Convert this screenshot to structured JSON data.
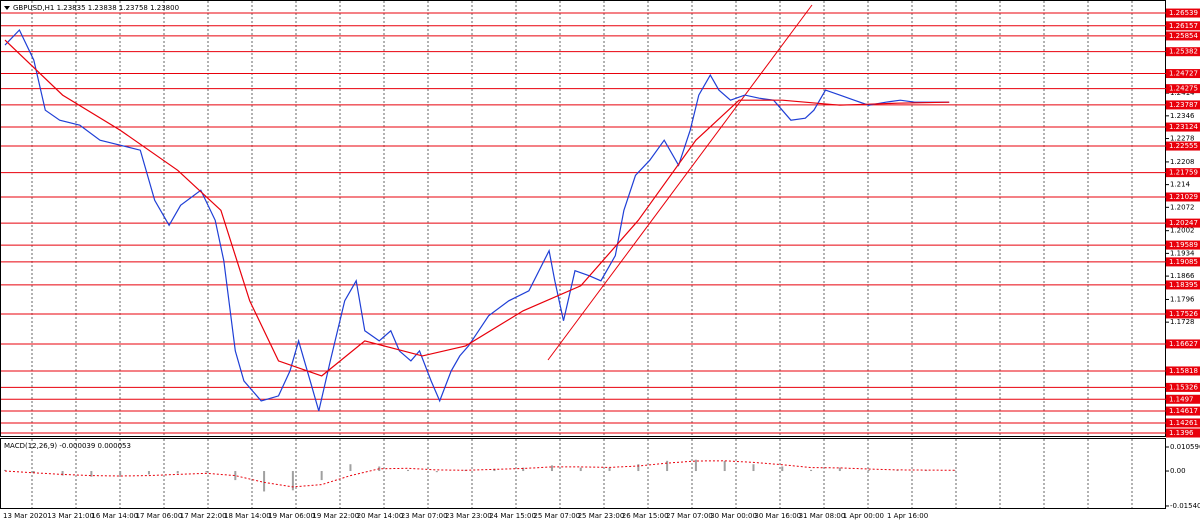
{
  "chart_data": {
    "type": "line",
    "title": "GBPUSD,H1 1.23835 1.23838 1.23758 1.23800",
    "xlim": [
      0,
      330
    ],
    "ylim": [
      1.1387,
      1.2693
    ],
    "yticks": [
      1.2414,
      1.2346,
      1.2278,
      1.2208,
      1.214,
      1.2072,
      1.2002,
      1.1934,
      1.1866,
      1.1796,
      1.1728
    ],
    "levels": [
      1.26539,
      1.26157,
      1.25854,
      1.25382,
      1.24727,
      1.24275,
      1.23787,
      1.23124,
      1.22555,
      1.21759,
      1.21029,
      1.20247,
      1.19589,
      1.19085,
      1.18395,
      1.17526,
      1.16627,
      1.15818,
      1.15326,
      1.1497,
      1.14617,
      1.14261,
      1.1396
    ],
    "level_color": "#e8000b",
    "categories": [
      "13 Mar 2020",
      "13 Mar 21:00",
      "16 Mar 14:00",
      "17 Mar 06:00",
      "17 Mar 22:00",
      "18 Mar 14:00",
      "19 Mar 06:00",
      "19 Mar 22:00",
      "20 Mar 14:00",
      "23 Mar 07:00",
      "23 Mar 23:00",
      "24 Mar 15:00",
      "25 Mar 07:00",
      "25 Mar 23:00",
      "26 Mar 15:00",
      "27 Mar 07:00",
      "30 Mar 00:00",
      "30 Mar 16:00",
      "31 Mar 08:00",
      "1 Apr 00:00",
      "1 Apr 16:00"
    ],
    "series": [
      {
        "color": "#1f3fd6",
        "x": [
          0,
          5,
          10,
          14,
          19,
          26,
          33,
          40,
          47,
          52,
          57,
          61,
          68,
          73,
          76,
          80,
          83,
          89,
          95,
          99,
          102,
          106,
          109,
          113,
          118,
          122,
          125,
          130,
          134,
          137,
          141,
          144,
          148,
          151,
          155,
          158,
          161,
          168,
          175,
          182,
          189,
          191,
          194,
          198,
          203,
          207,
          212,
          215,
          219,
          224,
          229,
          234,
          238,
          241,
          245,
          248,
          252,
          257,
          262,
          267,
          273,
          278,
          281,
          285,
          290,
          295,
          300,
          306,
          311,
          316,
          321,
          328
        ],
        "values": [
          1.2558,
          1.2603,
          1.2513,
          1.2363,
          1.2333,
          1.2318,
          1.2273,
          1.2258,
          1.2243,
          1.2093,
          1.2018,
          1.2078,
          1.2123,
          1.2033,
          1.1912,
          1.1642,
          1.1552,
          1.1492,
          1.1507,
          1.1582,
          1.1672,
          1.1552,
          1.1462,
          1.1612,
          1.1792,
          1.1852,
          1.1702,
          1.1672,
          1.1702,
          1.1642,
          1.1612,
          1.1642,
          1.1552,
          1.1492,
          1.1582,
          1.1627,
          1.1657,
          1.1747,
          1.1792,
          1.1822,
          1.1942,
          1.1852,
          1.1732,
          1.1882,
          1.1867,
          1.1852,
          1.1927,
          1.2063,
          1.2168,
          1.2213,
          1.2273,
          1.2198,
          1.2303,
          1.2408,
          1.2468,
          1.2423,
          1.2393,
          1.2408,
          1.2399,
          1.2393,
          1.2333,
          1.2339,
          1.2363,
          1.2423,
          1.2408,
          1.2393,
          1.2378,
          1.2387,
          1.2393,
          1.2387,
          1.2387,
          1.2387
        ]
      },
      {
        "color": "#e8000b",
        "x": [
          0,
          20,
          40,
          60,
          75,
          85,
          95,
          110,
          125,
          145,
          160,
          180,
          200,
          220,
          240,
          255,
          270,
          290,
          310,
          328
        ],
        "values": [
          1.2573,
          1.2408,
          1.2303,
          1.2183,
          1.2063,
          1.1792,
          1.1612,
          1.1567,
          1.1672,
          1.1627,
          1.1657,
          1.1762,
          1.1837,
          1.2033,
          1.2273,
          1.2393,
          1.2393,
          1.2378,
          1.2384,
          1.2387
        ]
      }
    ],
    "macd": {
      "label": "MACD(12,26,9) -0.000039 0.000053",
      "ylim": [
        -0.0163,
        0.01412
      ],
      "yticks": [
        0.010596,
        {
          "value": 0,
          "label": "0.00"
        },
        -0.015404
      ],
      "x": [
        0,
        10,
        20,
        30,
        40,
        50,
        60,
        70,
        80,
        90,
        100,
        110,
        120,
        130,
        140,
        150,
        160,
        170,
        180,
        190,
        200,
        210,
        220,
        230,
        240,
        250,
        260,
        270,
        280,
        290,
        300,
        310,
        320,
        330
      ],
      "histogram": [
        0.0005,
        -0.001,
        -0.002,
        -0.0025,
        -0.002,
        -0.0015,
        -0.001,
        -0.0005,
        -0.004,
        -0.009,
        -0.0085,
        -0.004,
        0.003,
        0.002,
        0.0005,
        -0.0005,
        0.0005,
        0.001,
        0.0015,
        0.0025,
        0.0015,
        0.0015,
        0.003,
        0.0045,
        0.005,
        0.0045,
        0.003,
        0.002,
        0.0005,
        0.0015,
        0.0005,
        0.0003,
        0.0003,
        0.0002
      ],
      "signal": [
        0,
        -0.0008,
        -0.0015,
        -0.002,
        -0.0022,
        -0.002,
        -0.0015,
        -0.001,
        -0.002,
        -0.005,
        -0.007,
        -0.006,
        -0.002,
        0.001,
        0.0012,
        0.0005,
        0.0003,
        0.0007,
        0.0011,
        0.0018,
        0.0018,
        0.0016,
        0.0022,
        0.0035,
        0.0044,
        0.0045,
        0.0038,
        0.0028,
        0.0015,
        0.0014,
        0.0009,
        0.0005,
        0.0004,
        0.0003
      ],
      "histogram_color": "#a0a0a0",
      "signal_color": "#e8000b"
    }
  }
}
